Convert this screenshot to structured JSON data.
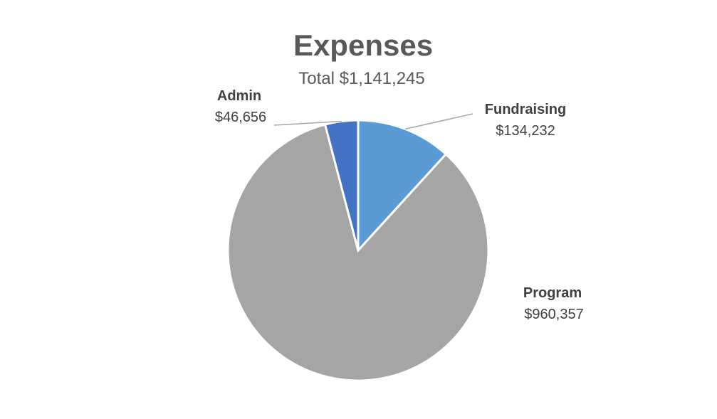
{
  "chart_data": {
    "type": "pie",
    "title": "Expenses",
    "subtitle": "Total $1,141,245",
    "slices": [
      {
        "label": "Fundraising",
        "value": 134232,
        "value_label": "$134,232",
        "color": "#5B9BD5"
      },
      {
        "label": "Program",
        "value": 960357,
        "value_label": "$960,357",
        "color": "#A5A5A5"
      },
      {
        "label": "Admin",
        "value": 46656,
        "value_label": "$46,656",
        "color": "#4472C4"
      }
    ],
    "start": "12 o'clock",
    "direction": "clockwise",
    "legend": "none",
    "data_labels": "outside with leader lines"
  }
}
